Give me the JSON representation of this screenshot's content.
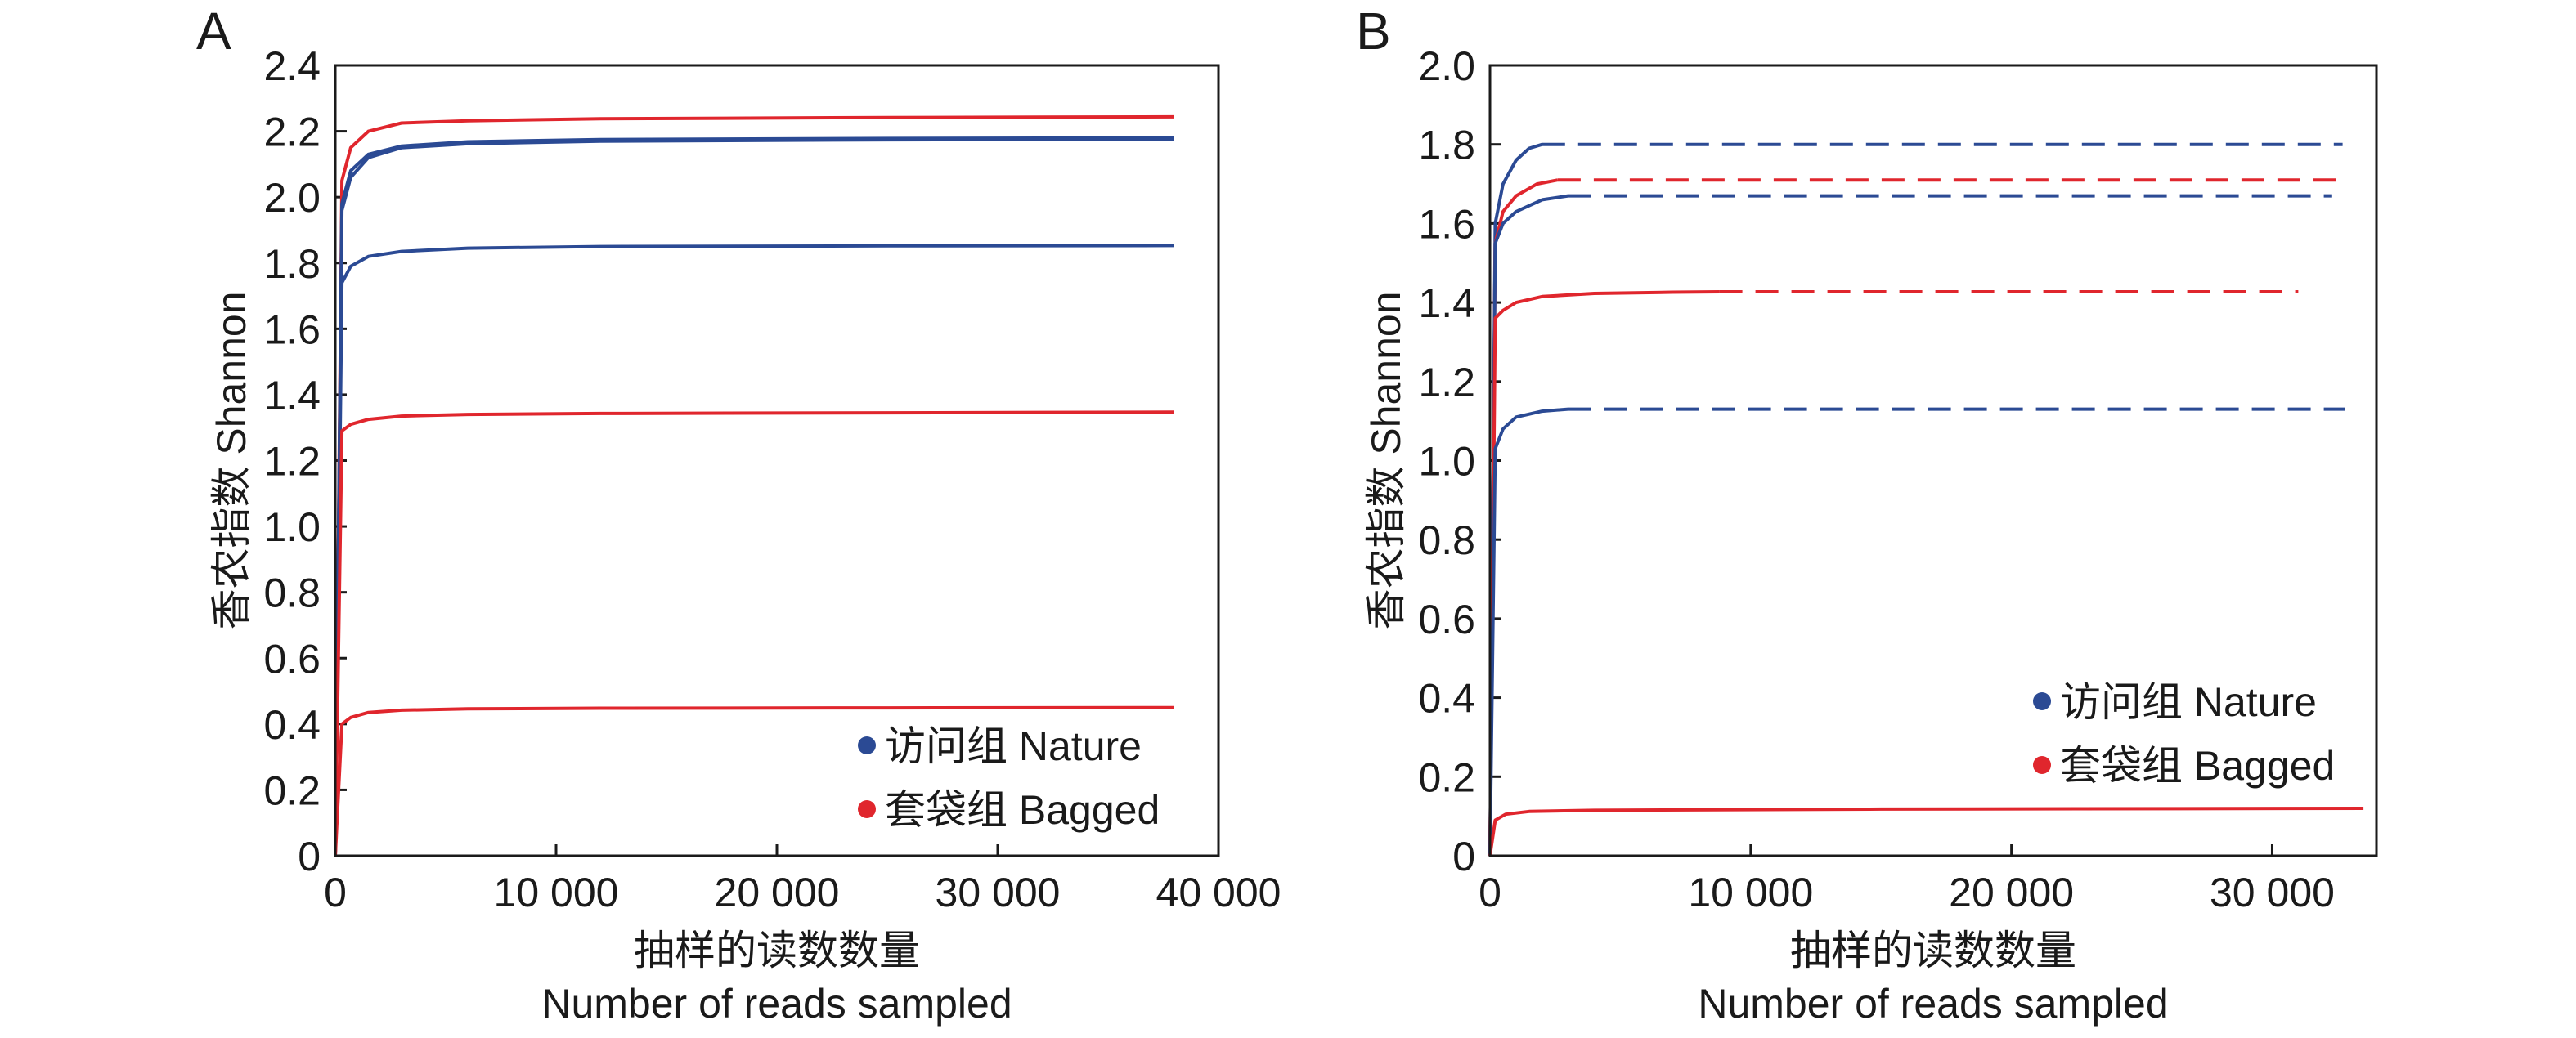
{
  "chart_data": [
    {
      "panel": "A",
      "type": "line",
      "xlabel": "抽样的读数数量",
      "xlabel_en": "Number of reads sampled",
      "ylabel": "香农指数 Shannon",
      "xlim": [
        0,
        40000
      ],
      "ylim": [
        0,
        2.4
      ],
      "xticks": [
        0,
        10000,
        20000,
        30000,
        40000
      ],
      "xtick_labels": [
        "0",
        "10 000",
        "20 000",
        "30 000",
        "40 000"
      ],
      "yticks": [
        0,
        0.2,
        0.4,
        0.6,
        0.8,
        1.0,
        1.2,
        1.4,
        1.6,
        1.8,
        2.0,
        2.2,
        2.4
      ],
      "ytick_labels": [
        "0",
        "0.2",
        "0.4",
        "0.6",
        "0.8",
        "1.0",
        "1.2",
        "1.4",
        "1.6",
        "1.8",
        "2.0",
        "2.2",
        "2.4"
      ],
      "grid": false,
      "legend_position": "bottom-right",
      "legend": [
        {
          "label": "访问组 Nature",
          "color": "#2b4a94"
        },
        {
          "label": "套袋组 Bagged",
          "color": "#e0262d"
        }
      ],
      "series": [
        {
          "group": "Bagged",
          "color": "#e0262d",
          "x": [
            0,
            300,
            700,
            1500,
            3000,
            6000,
            12000,
            25000,
            38000
          ],
          "y": [
            0,
            2.05,
            2.15,
            2.2,
            2.225,
            2.232,
            2.238,
            2.242,
            2.244
          ]
        },
        {
          "group": "Nature",
          "color": "#2b4a94",
          "x": [
            0,
            300,
            700,
            1500,
            3000,
            6000,
            12000,
            25000,
            38000
          ],
          "y": [
            0,
            1.98,
            2.08,
            2.13,
            2.155,
            2.168,
            2.175,
            2.178,
            2.18
          ]
        },
        {
          "group": "Nature",
          "color": "#2b4a94",
          "x": [
            0,
            300,
            700,
            1500,
            3000,
            6000,
            12000,
            25000,
            38000
          ],
          "y": [
            0,
            1.96,
            2.06,
            2.12,
            2.15,
            2.162,
            2.17,
            2.174,
            2.175
          ]
        },
        {
          "group": "Nature",
          "color": "#2b4a94",
          "x": [
            0,
            300,
            700,
            1500,
            3000,
            6000,
            12000,
            25000,
            38000
          ],
          "y": [
            0,
            1.74,
            1.79,
            1.82,
            1.835,
            1.845,
            1.85,
            1.852,
            1.853
          ]
        },
        {
          "group": "Bagged",
          "color": "#e0262d",
          "x": [
            0,
            300,
            700,
            1500,
            3000,
            6000,
            12000,
            25000,
            38000
          ],
          "y": [
            0,
            1.29,
            1.31,
            1.325,
            1.335,
            1.34,
            1.343,
            1.345,
            1.347
          ]
        },
        {
          "group": "Bagged",
          "color": "#e0262d",
          "x": [
            0,
            300,
            700,
            1500,
            3000,
            6000,
            12000,
            25000,
            38000
          ],
          "y": [
            0,
            0.4,
            0.42,
            0.435,
            0.442,
            0.446,
            0.448,
            0.449,
            0.45
          ]
        }
      ]
    },
    {
      "panel": "B",
      "type": "line",
      "xlabel": "抽样的读数数量",
      "xlabel_en": "Number of reads sampled",
      "ylabel": "香农指数 Shannon",
      "xlim": [
        0,
        34000
      ],
      "ylim": [
        0,
        2.0
      ],
      "xticks": [
        0,
        10000,
        20000,
        30000
      ],
      "xtick_labels": [
        "0",
        "10 000",
        "20 000",
        "30 000"
      ],
      "yticks": [
        0,
        0.2,
        0.4,
        0.6,
        0.8,
        1.0,
        1.2,
        1.4,
        1.6,
        1.8,
        2.0
      ],
      "ytick_labels": [
        "0",
        "0.2",
        "0.4",
        "0.6",
        "0.8",
        "1.0",
        "1.2",
        "1.4",
        "1.6",
        "1.8",
        "2.0"
      ],
      "grid": false,
      "legend_position": "bottom-right",
      "legend": [
        {
          "label": "访问组 Nature",
          "color": "#2b4a94"
        },
        {
          "label": "套袋组 Bagged",
          "color": "#e0262d"
        }
      ],
      "series": [
        {
          "group": "Nature",
          "color": "#2b4a94",
          "x": [
            0,
            200,
            500,
            1000,
            1500,
            2000
          ],
          "y": [
            0,
            1.6,
            1.7,
            1.76,
            1.79,
            1.8
          ],
          "extension": {
            "x": [
              2000,
              32700
            ],
            "y": [
              1.8,
              1.8
            ]
          }
        },
        {
          "group": "Bagged",
          "color": "#e0262d",
          "x": [
            0,
            200,
            500,
            1000,
            1800,
            2600
          ],
          "y": [
            0,
            1.55,
            1.63,
            1.67,
            1.7,
            1.71
          ],
          "extension": {
            "x": [
              2600,
              32500
            ],
            "y": [
              1.71,
              1.71
            ]
          }
        },
        {
          "group": "Nature",
          "color": "#2b4a94",
          "x": [
            0,
            200,
            500,
            1000,
            2000,
            3000
          ],
          "y": [
            0,
            1.55,
            1.6,
            1.63,
            1.66,
            1.67
          ],
          "extension": {
            "x": [
              3000,
              32300
            ],
            "y": [
              1.67,
              1.67
            ]
          }
        },
        {
          "group": "Bagged",
          "color": "#e0262d",
          "x": [
            0,
            200,
            500,
            1000,
            2000,
            4000,
            7000,
            8800
          ],
          "y": [
            0,
            1.36,
            1.38,
            1.4,
            1.415,
            1.423,
            1.426,
            1.427
          ],
          "extension": {
            "x": [
              8800,
              31000
            ],
            "y": [
              1.427,
              1.427
            ]
          }
        },
        {
          "group": "Nature",
          "color": "#2b4a94",
          "x": [
            0,
            200,
            500,
            1000,
            2000,
            3000
          ],
          "y": [
            0,
            1.03,
            1.08,
            1.11,
            1.125,
            1.13
          ],
          "extension": {
            "x": [
              3000,
              32800
            ],
            "y": [
              1.13,
              1.13
            ]
          }
        },
        {
          "group": "Bagged",
          "color": "#e0262d",
          "x": [
            0,
            200,
            600,
            1500,
            4000,
            15000,
            33500
          ],
          "y": [
            0,
            0.09,
            0.105,
            0.112,
            0.115,
            0.118,
            0.12
          ]
        }
      ]
    }
  ]
}
